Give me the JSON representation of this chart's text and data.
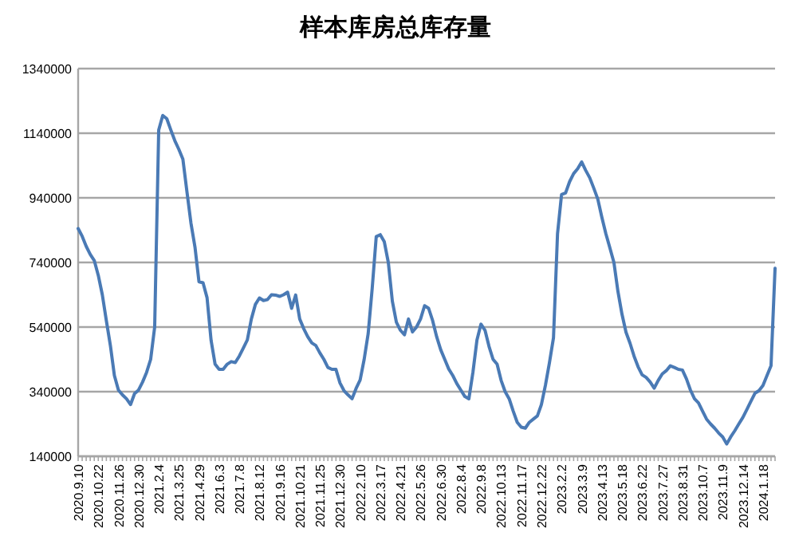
{
  "chart_data": {
    "type": "line",
    "title": "样本库房总库存量",
    "categories": [
      "2020.9.10",
      null,
      null,
      null,
      null,
      "2020.10.22",
      null,
      null,
      null,
      null,
      "2020.11.26",
      null,
      null,
      null,
      null,
      "2020.12.30",
      null,
      null,
      null,
      null,
      "2021.2.4",
      null,
      null,
      null,
      null,
      "2021.3.25",
      null,
      null,
      null,
      null,
      "2021.4.29",
      null,
      null,
      null,
      null,
      "2021.6.3",
      null,
      null,
      null,
      null,
      "2021.7.8",
      null,
      null,
      null,
      null,
      "2021.8.12",
      null,
      null,
      null,
      null,
      "2021.9.16",
      null,
      null,
      null,
      null,
      "2021.10.21",
      null,
      null,
      null,
      null,
      "2021.11.25",
      null,
      null,
      null,
      null,
      "2021.12.30",
      null,
      null,
      null,
      null,
      "2022.2.10",
      null,
      null,
      null,
      null,
      "2022.3.17",
      null,
      null,
      null,
      null,
      "2022.4.21",
      null,
      null,
      null,
      null,
      "2022.5.26",
      null,
      null,
      null,
      null,
      "2022.6.30",
      null,
      null,
      null,
      null,
      "2022.8.4",
      null,
      null,
      null,
      null,
      "2022.9.8",
      null,
      null,
      null,
      null,
      "2022.10.13",
      null,
      null,
      null,
      null,
      "2022.11.17",
      null,
      null,
      null,
      null,
      "2022.12.22",
      null,
      null,
      null,
      null,
      "2023.2.2",
      null,
      null,
      null,
      null,
      "2023.3.9",
      null,
      null,
      null,
      null,
      "2023.4.13",
      null,
      null,
      null,
      null,
      "2023.5.18",
      null,
      null,
      null,
      null,
      "2023.6.22",
      null,
      null,
      null,
      null,
      "2023.7.27",
      null,
      null,
      null,
      null,
      "2023.8.31",
      null,
      null,
      null,
      null,
      "2023.10.7",
      null,
      null,
      null,
      null,
      "2023.11.9",
      null,
      null,
      null,
      null,
      "2023.12.14",
      null,
      null,
      null,
      null,
      "2024.1.18",
      null,
      null,
      null
    ],
    "series": [
      {
        "color": "#4a7ab5",
        "values": [
          845000,
          821000,
          790000,
          765000,
          746000,
          700000,
          640000,
          560000,
          483000,
          390000,
          345000,
          330000,
          318000,
          300000,
          334000,
          345000,
          370000,
          400000,
          440000,
          540000,
          1150000,
          1195000,
          1185000,
          1150000,
          1117000,
          1090000,
          1060000,
          960000,
          862000,
          788000,
          680000,
          677000,
          631000,
          499000,
          425000,
          409000,
          409000,
          425000,
          433000,
          430000,
          450000,
          475000,
          500000,
          565000,
          610000,
          630000,
          622000,
          625000,
          640000,
          639000,
          635000,
          640000,
          648000,
          598000,
          639000,
          565000,
          535000,
          510000,
          491000,
          483000,
          460000,
          440000,
          415000,
          409000,
          409000,
          367000,
          343000,
          330000,
          318000,
          350000,
          376000,
          440000,
          520000,
          660000,
          820000,
          826000,
          804000,
          740000,
          620000,
          555000,
          530000,
          516000,
          565000,
          525000,
          540000,
          565000,
          606000,
          598000,
          560000,
          510000,
          470000,
          440000,
          410000,
          390000,
          365000,
          345000,
          325000,
          318000,
          400000,
          500000,
          549000,
          530000,
          480000,
          440000,
          425000,
          375000,
          340000,
          318000,
          280000,
          245000,
          230000,
          227000,
          245000,
          255000,
          265000,
          300000,
          360000,
          430000,
          507000,
          829000,
          950000,
          955000,
          990000,
          1015000,
          1030000,
          1051000,
          1025000,
          1002000,
          970000,
          936000,
          880000,
          829000,
          785000,
          740000,
          650000,
          580000,
          524000,
          490000,
          450000,
          417000,
          392000,
          384000,
          370000,
          351000,
          375000,
          395000,
          405000,
          420000,
          415000,
          409000,
          407000,
          380000,
          345000,
          318000,
          305000,
          280000,
          255000,
          240000,
          227000,
          212000,
          200000,
          178000,
          200000,
          219000,
          240000,
          260000,
          285000,
          310000,
          335000,
          343000,
          359000,
          390000,
          420000,
          722000
        ]
      }
    ],
    "ylim": [
      140000,
      1340000
    ],
    "yticks": [
      140000,
      340000,
      540000,
      740000,
      940000,
      1140000,
      1340000
    ],
    "grid": "y",
    "marker": "none",
    "line_style": "solid"
  }
}
